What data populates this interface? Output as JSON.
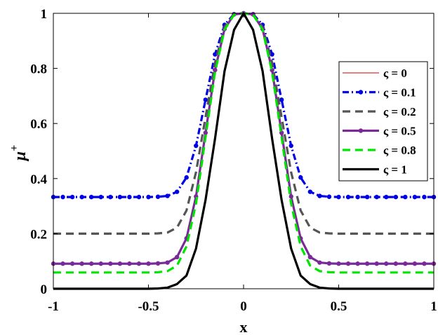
{
  "chart_data": {
    "type": "line",
    "xlabel": "x",
    "ylabel_base": "μ",
    "ylabel_sup": "+",
    "xlim": [
      -1,
      1
    ],
    "ylim": [
      0,
      1
    ],
    "xticks": [
      -1,
      -0.5,
      0,
      0.5,
      1
    ],
    "xtick_labels": [
      "-1",
      "-0.5",
      "0",
      "0.5",
      "1"
    ],
    "yticks": [
      0,
      0.2,
      0.4,
      0.6,
      0.8,
      1
    ],
    "ytick_labels": [
      "0",
      "0.2",
      "0.4",
      "0.6",
      "0.8",
      "1"
    ],
    "grid": false,
    "legend_position": "right",
    "x": [
      -1,
      -0.95,
      -0.9,
      -0.85,
      -0.8,
      -0.75,
      -0.7,
      -0.65,
      -0.6,
      -0.55,
      -0.5,
      -0.45,
      -0.4,
      -0.35,
      -0.3,
      -0.25,
      -0.2,
      -0.15,
      -0.1,
      -0.05,
      0,
      0.05,
      0.1,
      0.15,
      0.2,
      0.25,
      0.3,
      0.35,
      0.4,
      0.45,
      0.5,
      0.55,
      0.6,
      0.65,
      0.7,
      0.75,
      0.8,
      0.85,
      0.9,
      0.95,
      1
    ],
    "series": [
      {
        "name": "ς = 0",
        "color": "#d00000",
        "style": "solid",
        "marker": "none",
        "values": [
          1,
          1,
          1,
          1,
          1,
          1,
          1,
          1,
          1,
          1,
          1,
          1,
          1,
          1,
          1,
          1,
          1,
          1,
          1,
          1,
          1,
          1,
          1,
          1,
          1,
          1,
          1,
          1,
          1,
          1,
          1,
          1,
          1,
          1,
          1,
          1,
          1,
          1,
          1,
          1,
          1
        ]
      },
      {
        "name": "ς = 0.1",
        "color": "#0000e6",
        "style": "dashdot",
        "marker": "dot",
        "values": [
          0.333,
          0.333,
          0.333,
          0.333,
          0.333,
          0.333,
          0.333,
          0.333,
          0.333,
          0.333,
          0.333,
          0.334,
          0.337,
          0.352,
          0.404,
          0.519,
          0.686,
          0.851,
          0.958,
          0.997,
          1,
          0.997,
          0.958,
          0.851,
          0.686,
          0.519,
          0.404,
          0.352,
          0.337,
          0.334,
          0.333,
          0.333,
          0.333,
          0.333,
          0.333,
          0.333,
          0.333,
          0.333,
          0.333,
          0.333,
          0.333
        ]
      },
      {
        "name": "ς = 0.2",
        "color": "#555555",
        "style": "dashed",
        "marker": "none",
        "values": [
          0.2,
          0.2,
          0.2,
          0.2,
          0.2,
          0.2,
          0.2,
          0.2,
          0.2,
          0.2,
          0.2,
          0.201,
          0.204,
          0.222,
          0.284,
          0.423,
          0.623,
          0.821,
          0.95,
          0.996,
          1,
          0.996,
          0.95,
          0.821,
          0.623,
          0.423,
          0.284,
          0.222,
          0.204,
          0.201,
          0.2,
          0.2,
          0.2,
          0.2,
          0.2,
          0.2,
          0.2,
          0.2,
          0.2,
          0.2,
          0.2
        ]
      },
      {
        "name": "ς = 0.5",
        "color": "#7a2a96",
        "style": "solid",
        "marker": "dot",
        "values": [
          0.091,
          0.091,
          0.091,
          0.091,
          0.091,
          0.091,
          0.091,
          0.091,
          0.091,
          0.091,
          0.091,
          0.092,
          0.095,
          0.115,
          0.183,
          0.335,
          0.566,
          0.794,
          0.943,
          0.996,
          1,
          0.996,
          0.943,
          0.794,
          0.566,
          0.335,
          0.183,
          0.115,
          0.095,
          0.092,
          0.091,
          0.091,
          0.091,
          0.091,
          0.091,
          0.091,
          0.091,
          0.091,
          0.091,
          0.091,
          0.091
        ]
      },
      {
        "name": "ς = 0.8",
        "color": "#00e600",
        "style": "dashed",
        "marker": "none",
        "values": [
          0.059,
          0.059,
          0.059,
          0.059,
          0.059,
          0.059,
          0.059,
          0.059,
          0.059,
          0.059,
          0.059,
          0.06,
          0.064,
          0.084,
          0.154,
          0.309,
          0.55,
          0.786,
          0.941,
          0.995,
          1,
          0.995,
          0.941,
          0.786,
          0.55,
          0.309,
          0.154,
          0.084,
          0.064,
          0.06,
          0.059,
          0.059,
          0.059,
          0.059,
          0.059,
          0.059,
          0.059,
          0.059,
          0.059,
          0.059,
          0.059
        ]
      },
      {
        "name": "ς = 1",
        "color": "#000000",
        "style": "solid",
        "marker": "none",
        "values": [
          0,
          0,
          0,
          0,
          0,
          0,
          0,
          0,
          0,
          0,
          0,
          0.001,
          0.004,
          0.017,
          0.048,
          0.146,
          0.322,
          0.545,
          0.79,
          0.94,
          1,
          0.94,
          0.79,
          0.545,
          0.322,
          0.146,
          0.048,
          0.017,
          0.004,
          0.001,
          0,
          0,
          0,
          0,
          0,
          0,
          0,
          0,
          0,
          0,
          0
        ]
      }
    ]
  }
}
